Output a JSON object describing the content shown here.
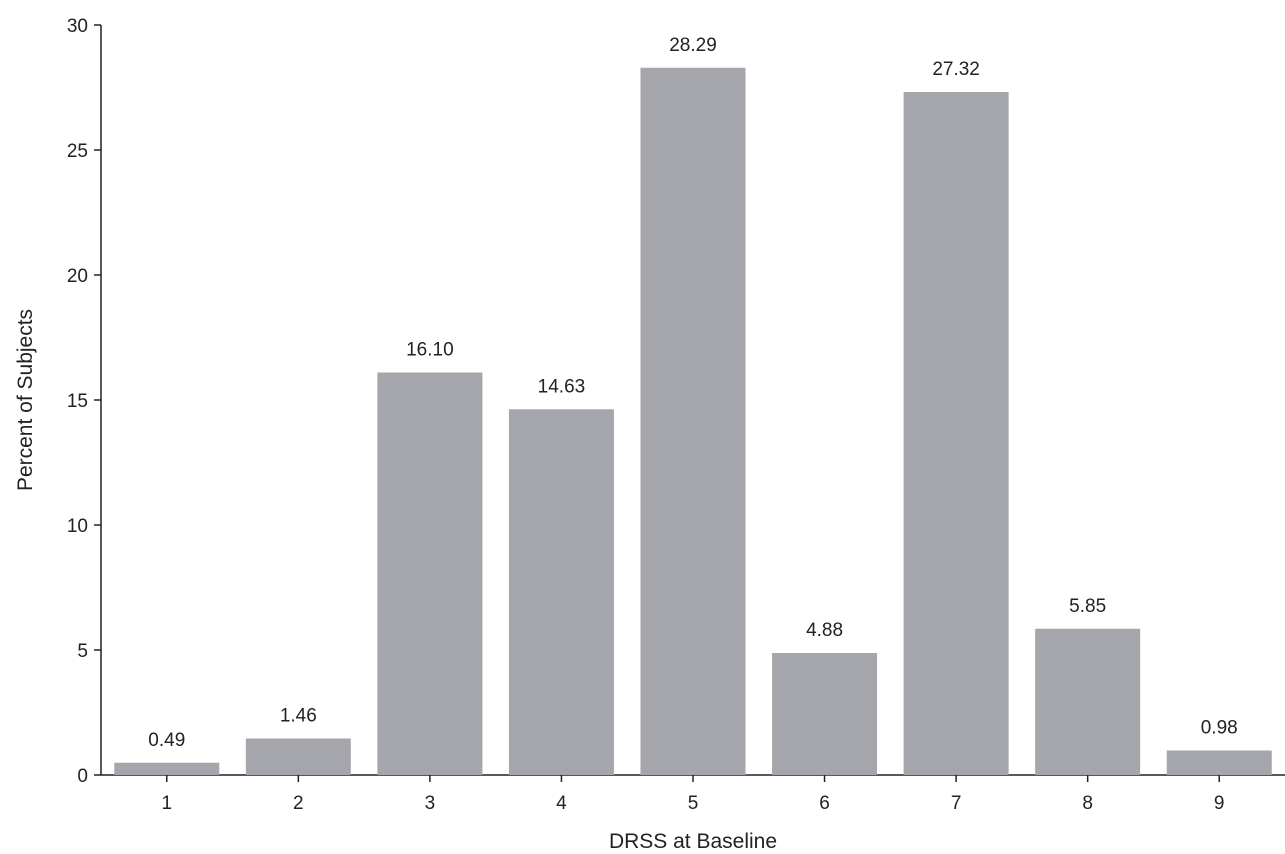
{
  "chart_data": {
    "type": "bar",
    "title": "",
    "xlabel": "DRSS at Baseline",
    "ylabel": "Percent of Subjects",
    "categories": [
      "1",
      "2",
      "3",
      "4",
      "5",
      "6",
      "7",
      "8",
      "9"
    ],
    "values": [
      0.49,
      1.46,
      16.1,
      14.63,
      28.29,
      4.88,
      27.32,
      5.85,
      0.98
    ],
    "value_labels": [
      "0.49",
      "1.46",
      "16.10",
      "14.63",
      "28.29",
      "4.88",
      "27.32",
      "5.85",
      "0.98"
    ],
    "ylim": [
      0,
      30
    ],
    "yticks": [
      0,
      5,
      10,
      15,
      20,
      25,
      30
    ],
    "ytick_labels": [
      "0",
      "5",
      "10",
      "15",
      "20",
      "25",
      "30"
    ],
    "grid": false,
    "bar_color": "#a5a6ab",
    "axis_color": "#222222"
  }
}
